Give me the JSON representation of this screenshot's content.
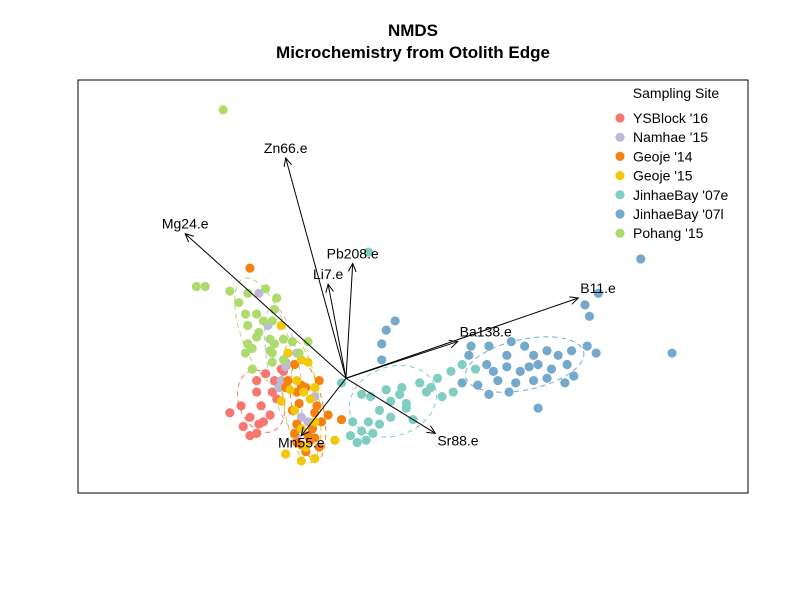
{
  "chart_data": {
    "type": "scatter",
    "title": "NMDS",
    "subtitle": "Microchemistry from Otolith Edge",
    "xlabel": "",
    "ylabel": "",
    "xlim": [
      -1.2,
      1.8
    ],
    "ylim": [
      -0.5,
      1.3
    ],
    "axes_visible": false,
    "grid": false,
    "legend_title": "Sampling Site",
    "legend_position": "top-right",
    "series": [
      {
        "name": "YSBlock '16",
        "color": "#F8766D",
        "points": [
          [
            -0.4,
            -0.01
          ],
          [
            -0.32,
            -0.01
          ],
          [
            -0.36,
            0.02
          ],
          [
            -0.28,
            0.03
          ],
          [
            -0.4,
            -0.06
          ],
          [
            -0.33,
            -0.06
          ],
          [
            -0.47,
            -0.12
          ],
          [
            -0.38,
            -0.12
          ],
          [
            -0.39,
            -0.2
          ],
          [
            -0.43,
            -0.17
          ],
          [
            -0.52,
            -0.15
          ],
          [
            -0.34,
            -0.16
          ],
          [
            -0.46,
            -0.21
          ],
          [
            -0.43,
            -0.25
          ],
          [
            -0.4,
            -0.24
          ],
          [
            -0.37,
            -0.19
          ],
          [
            -0.31,
            -0.09
          ],
          [
            -0.29,
            0.04
          ]
        ]
      },
      {
        "name": "Namhae '15",
        "color": "#BEB9DB",
        "points": [
          [
            -0.39,
            0.37
          ],
          [
            -0.35,
            0.23
          ],
          [
            -0.22,
            0.11
          ],
          [
            -0.27,
            0.05
          ],
          [
            -0.3,
            -0.04
          ],
          [
            -0.21,
            -0.11
          ],
          [
            -0.14,
            -0.08
          ],
          [
            -0.2,
            -0.17
          ],
          [
            -0.22,
            -0.26
          ],
          [
            -0.17,
            -0.19
          ],
          [
            -0.27,
            0.07
          ],
          [
            -0.29,
            -0.01
          ]
        ]
      },
      {
        "name": "Geoje '14",
        "color": "#F5820F",
        "points": [
          [
            -0.43,
            0.48
          ],
          [
            -0.26,
            -0.01
          ],
          [
            -0.22,
            -0.06
          ],
          [
            -0.18,
            -0.04
          ],
          [
            -0.13,
            -0.12
          ],
          [
            -0.2,
            -0.03
          ],
          [
            -0.23,
            -0.24
          ],
          [
            -0.17,
            -0.25
          ],
          [
            -0.14,
            -0.26
          ],
          [
            -0.22,
            -0.28
          ],
          [
            -0.2,
            -0.29
          ],
          [
            -0.12,
            -0.3
          ],
          [
            -0.16,
            -0.27
          ],
          [
            -0.18,
            -0.32
          ],
          [
            -0.15,
            -0.22
          ],
          [
            -0.22,
            -0.2
          ],
          [
            -0.21,
            -0.11
          ],
          [
            -0.08,
            -0.16
          ],
          [
            -0.02,
            -0.18
          ],
          [
            -0.11,
            -0.19
          ],
          [
            -0.14,
            -0.15
          ],
          [
            -0.24,
            -0.14
          ],
          [
            -0.27,
            -0.04
          ],
          [
            -0.12,
            -0.01
          ],
          [
            -0.23,
            0.06
          ]
        ]
      },
      {
        "name": "Geoje '15",
        "color": "#F2C80D",
        "points": [
          [
            -0.29,
            0.23
          ],
          [
            -0.26,
            0.11
          ],
          [
            -0.2,
            0.08
          ],
          [
            -0.17,
            0.07
          ],
          [
            -0.25,
            -0.05
          ],
          [
            -0.19,
            -0.06
          ],
          [
            -0.22,
            -0.01
          ],
          [
            -0.16,
            -0.09
          ],
          [
            -0.29,
            -0.1
          ],
          [
            -0.23,
            -0.14
          ],
          [
            -0.18,
            -0.3
          ],
          [
            -0.14,
            -0.35
          ],
          [
            -0.2,
            -0.36
          ],
          [
            -0.27,
            -0.33
          ],
          [
            -0.14,
            -0.19
          ],
          [
            -0.05,
            -0.27
          ],
          [
            -0.14,
            -0.04
          ],
          [
            -0.2,
            -0.22
          ]
        ]
      },
      {
        "name": "JinhaeBay '07e",
        "color": "#80CDC1",
        "points": [
          [
            0.1,
            0.55
          ],
          [
            -0.02,
            -0.02
          ],
          [
            0.07,
            -0.07
          ],
          [
            0.11,
            -0.08
          ],
          [
            0.18,
            -0.05
          ],
          [
            0.2,
            -0.1
          ],
          [
            0.15,
            -0.14
          ],
          [
            0.2,
            -0.17
          ],
          [
            0.1,
            -0.19
          ],
          [
            0.03,
            -0.19
          ],
          [
            0.07,
            -0.23
          ],
          [
            0.12,
            -0.24
          ],
          [
            0.02,
            -0.25
          ],
          [
            0.05,
            -0.28
          ],
          [
            0.09,
            -0.27
          ],
          [
            0.24,
            -0.07
          ],
          [
            0.27,
            -0.11
          ],
          [
            0.3,
            -0.18
          ],
          [
            0.33,
            -0.02
          ],
          [
            0.38,
            -0.04
          ],
          [
            0.41,
            0.0
          ],
          [
            0.43,
            -0.08
          ],
          [
            0.36,
            -0.06
          ],
          [
            0.48,
            -0.06
          ],
          [
            0.47,
            0.03
          ],
          [
            0.52,
            0.06
          ],
          [
            0.58,
            0.04
          ],
          [
            0.25,
            -0.04
          ],
          [
            0.27,
            -0.13
          ],
          [
            0.15,
            -0.2
          ]
        ]
      },
      {
        "name": "JinhaeBay '07l",
        "color": "#75A9CC",
        "points": [
          [
            0.22,
            0.25
          ],
          [
            0.18,
            0.21
          ],
          [
            0.16,
            0.15
          ],
          [
            0.16,
            0.08
          ],
          [
            0.55,
            0.1
          ],
          [
            0.64,
            0.14
          ],
          [
            0.72,
            0.1
          ],
          [
            0.74,
            0.16
          ],
          [
            0.8,
            0.14
          ],
          [
            0.84,
            0.1
          ],
          [
            0.9,
            0.12
          ],
          [
            0.95,
            0.1
          ],
          [
            1.01,
            0.12
          ],
          [
            1.08,
            0.14
          ],
          [
            1.12,
            0.11
          ],
          [
            0.63,
            0.06
          ],
          [
            0.66,
            0.03
          ],
          [
            0.72,
            0.05
          ],
          [
            0.78,
            0.03
          ],
          [
            0.82,
            0.05
          ],
          [
            0.86,
            0.06
          ],
          [
            0.92,
            0.04
          ],
          [
            0.99,
            0.06
          ],
          [
            1.02,
            0.01
          ],
          [
            0.68,
            -0.01
          ],
          [
            0.76,
            -0.02
          ],
          [
            0.84,
            -0.01
          ],
          [
            0.9,
            0.0
          ],
          [
            0.59,
            -0.03
          ],
          [
            0.64,
            -0.07
          ],
          [
            0.73,
            -0.06
          ],
          [
            0.52,
            -0.02
          ],
          [
            0.86,
            -0.13
          ],
          [
            1.07,
            0.32
          ],
          [
            1.13,
            0.37
          ],
          [
            1.32,
            0.52
          ],
          [
            1.46,
            0.11
          ],
          [
            1.09,
            0.27
          ],
          [
            0.56,
            0.14
          ],
          [
            0.98,
            -0.02
          ]
        ]
      },
      {
        "name": "Pohang '15",
        "color": "#AEDB6E",
        "points": [
          [
            -0.55,
            1.17
          ],
          [
            -0.67,
            0.4
          ],
          [
            -0.63,
            0.4
          ],
          [
            -0.52,
            0.38
          ],
          [
            -0.44,
            0.37
          ],
          [
            -0.48,
            0.33
          ],
          [
            -0.45,
            0.28
          ],
          [
            -0.4,
            0.28
          ],
          [
            -0.33,
            0.25
          ],
          [
            -0.32,
            0.3
          ],
          [
            -0.37,
            0.25
          ],
          [
            -0.4,
            0.18
          ],
          [
            -0.44,
            0.15
          ],
          [
            -0.34,
            0.12
          ],
          [
            -0.33,
            0.07
          ],
          [
            -0.28,
            0.17
          ],
          [
            -0.44,
            0.23
          ],
          [
            -0.39,
            0.2
          ],
          [
            -0.34,
            0.17
          ],
          [
            -0.33,
            0.11
          ],
          [
            -0.28,
            0.08
          ],
          [
            -0.45,
            0.11
          ],
          [
            -0.42,
            0.13
          ],
          [
            -0.31,
            0.35
          ],
          [
            -0.36,
            0.39
          ],
          [
            -0.24,
            0.16
          ],
          [
            -0.17,
            0.16
          ],
          [
            -0.21,
            0.11
          ],
          [
            -0.42,
            0.04
          ],
          [
            -0.32,
            0.15
          ]
        ]
      }
    ],
    "ellipses": [
      {
        "series": "YSBlock '16",
        "color": "#F8766D",
        "cx": -0.38,
        "cy": -0.1,
        "rx": 0.1,
        "ry": 0.14,
        "rotate_deg": -20
      },
      {
        "series": "Namhae '15",
        "color": "#BEB9DB",
        "cx": -0.28,
        "cy": 0.05,
        "rx": 0.07,
        "ry": 0.27,
        "rotate_deg": -10
      },
      {
        "series": "Geoje '14",
        "color": "#F5820F",
        "cx": -0.17,
        "cy": -0.14,
        "rx": 0.07,
        "ry": 0.22,
        "rotate_deg": -10
      },
      {
        "series": "Geoje '15",
        "color": "#F2C80D",
        "cx": -0.2,
        "cy": -0.1,
        "rx": 0.08,
        "ry": 0.27,
        "rotate_deg": -8
      },
      {
        "series": "JinhaeBay '07e",
        "color": "#80CDC1",
        "cx": 0.21,
        "cy": -0.1,
        "rx": 0.2,
        "ry": 0.15,
        "rotate_deg": -20
      },
      {
        "series": "JinhaeBay '07l",
        "color": "#75A9CC",
        "cx": 0.8,
        "cy": 0.06,
        "rx": 0.27,
        "ry": 0.11,
        "rotate_deg": -12
      },
      {
        "series": "Pohang '15",
        "color": "#AEDB6E",
        "cx": -0.37,
        "cy": 0.2,
        "rx": 0.1,
        "ry": 0.25,
        "rotate_deg": -20
      }
    ],
    "vectors": [
      {
        "label": "Zn66.e",
        "x": -0.27,
        "y": 0.96
      },
      {
        "label": "Mg24.e",
        "x": -0.72,
        "y": 0.63
      },
      {
        "label": "Pb208.e",
        "x": 0.03,
        "y": 0.5
      },
      {
        "label": "Li7.e",
        "x": -0.08,
        "y": 0.41
      },
      {
        "label": "B11.e",
        "x": 1.04,
        "y": 0.35
      },
      {
        "label": "Ba138.e",
        "x": 0.5,
        "y": 0.16
      },
      {
        "label": "Sr88.e",
        "x": 0.4,
        "y": -0.24
      },
      {
        "label": "Mn55.e",
        "x": -0.2,
        "y": -0.25
      }
    ]
  }
}
